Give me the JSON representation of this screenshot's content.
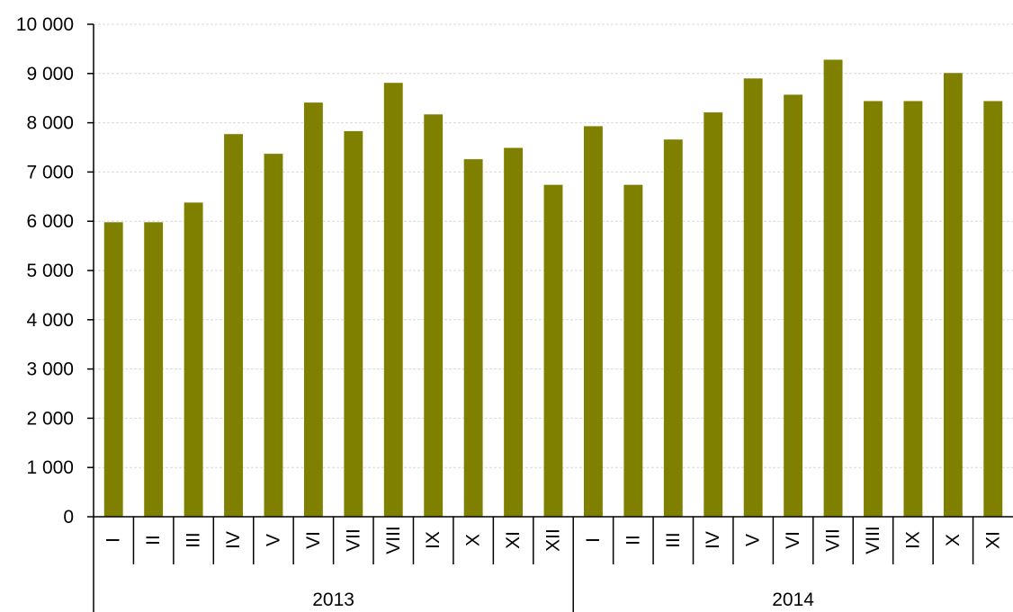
{
  "chart_data": {
    "type": "bar",
    "groups": [
      {
        "label": "2013",
        "categories": [
          "I",
          "II",
          "III",
          "IV",
          "V",
          "VI",
          "VII",
          "VIII",
          "IX",
          "X",
          "XI",
          "XII"
        ]
      },
      {
        "label": "2014",
        "categories": [
          "I",
          "II",
          "III",
          "IV",
          "V",
          "VI",
          "VII",
          "VIII",
          "IX",
          "X",
          "XI"
        ]
      }
    ],
    "values": [
      5980,
      5980,
      6380,
      7770,
      7370,
      8410,
      7830,
      8810,
      8170,
      7260,
      7490,
      6740,
      7930,
      6740,
      7660,
      8210,
      8900,
      8570,
      9280,
      8440,
      8440,
      9010,
      8440
    ],
    "ylim": [
      0,
      10000
    ],
    "yticks": [
      0,
      1000,
      2000,
      3000,
      4000,
      5000,
      6000,
      7000,
      8000,
      9000,
      10000
    ],
    "ytick_labels": [
      "0",
      "1 000",
      "2 000",
      "3 000",
      "4 000",
      "5 000",
      "6 000",
      "7 000",
      "8 000",
      "9 000",
      "10 000"
    ],
    "grid": true,
    "bar_color": "#808000",
    "grid_color": "#d9d9d9",
    "axis_color": "#000000"
  }
}
